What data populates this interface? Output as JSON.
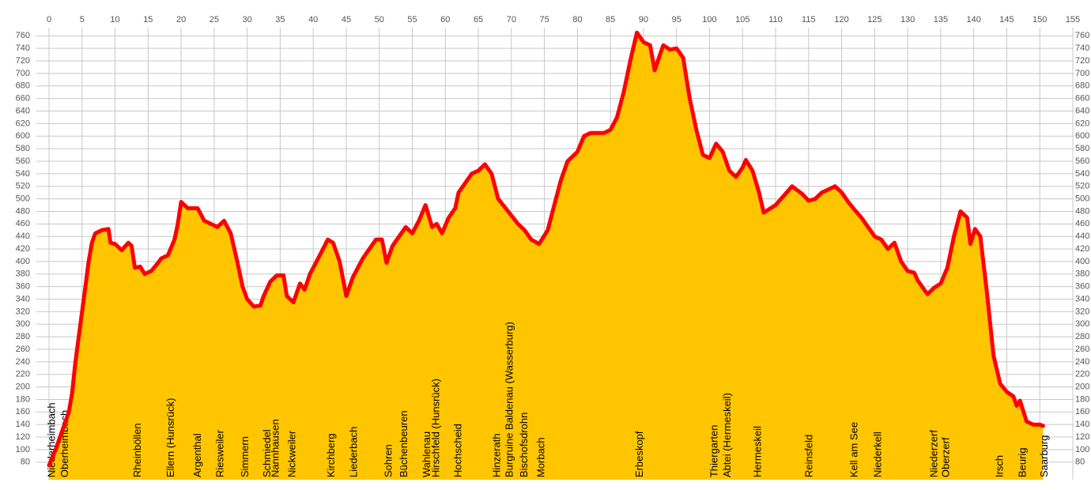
{
  "chart_data": {
    "type": "area",
    "x": [
      0,
      1,
      2,
      3,
      3.5,
      4,
      4.5,
      5,
      5.5,
      6,
      6.5,
      7,
      8,
      9,
      9.3,
      10,
      11,
      12,
      12.5,
      13,
      13.8,
      14.5,
      15.5,
      16.5,
      17,
      18,
      19,
      19.5,
      20,
      21,
      22.5,
      23.5,
      24.5,
      25.5,
      26.5,
      27.5,
      28.5,
      29.3,
      30,
      31,
      32,
      32.5,
      33.5,
      34.5,
      35.5,
      36,
      37,
      38,
      38.7,
      39.5,
      41,
      42.2,
      43,
      44,
      45,
      46,
      47.5,
      48.5,
      49.5,
      50.4,
      51.1,
      52,
      53,
      54,
      55,
      56,
      57,
      58,
      58.7,
      59.5,
      60.5,
      61.5,
      62,
      63,
      64,
      65,
      66,
      67,
      68,
      69.5,
      71,
      72,
      73,
      74.2,
      75.5,
      76.5,
      77.5,
      78.5,
      80,
      81,
      82,
      84,
      85,
      86,
      87,
      88,
      89,
      90,
      91,
      91.7,
      92.5,
      93,
      94,
      95,
      96,
      97,
      98,
      99,
      100,
      101,
      102,
      103,
      104,
      105,
      105.5,
      106.5,
      107.5,
      108.2,
      110,
      111.5,
      112.5,
      114,
      115,
      116,
      117,
      119,
      120,
      121,
      122,
      123,
      124,
      125,
      126,
      127,
      128,
      129,
      130,
      131,
      131.5,
      132.5,
      133,
      134,
      135,
      136,
      137,
      138,
      139,
      139.5,
      140.2,
      141,
      142,
      143,
      144,
      145,
      146,
      146.5,
      147,
      148,
      149,
      150,
      150.5
    ],
    "values": [
      75,
      100,
      130,
      160,
      190,
      240,
      280,
      320,
      360,
      400,
      430,
      445,
      450,
      452,
      430,
      428,
      418,
      430,
      425,
      390,
      392,
      380,
      385,
      398,
      405,
      410,
      435,
      460,
      495,
      485,
      485,
      465,
      460,
      455,
      465,
      445,
      400,
      360,
      340,
      328,
      330,
      345,
      368,
      378,
      378,
      345,
      335,
      365,
      355,
      380,
      410,
      435,
      430,
      400,
      345,
      375,
      405,
      420,
      435,
      435,
      398,
      425,
      440,
      455,
      445,
      465,
      490,
      455,
      460,
      445,
      470,
      485,
      510,
      525,
      540,
      545,
      555,
      540,
      500,
      480,
      460,
      450,
      435,
      428,
      450,
      490,
      530,
      560,
      575,
      600,
      605,
      605,
      610,
      630,
      670,
      720,
      765,
      750,
      745,
      705,
      730,
      745,
      738,
      740,
      725,
      660,
      610,
      570,
      565,
      588,
      575,
      545,
      535,
      550,
      562,
      545,
      510,
      478,
      490,
      508,
      520,
      508,
      497,
      500,
      510,
      520,
      510,
      495,
      482,
      470,
      455,
      440,
      435,
      420,
      430,
      400,
      385,
      382,
      370,
      355,
      348,
      358,
      365,
      390,
      440,
      480,
      470,
      428,
      452,
      440,
      350,
      250,
      205,
      192,
      185,
      170,
      178,
      145,
      140,
      140,
      138
    ],
    "color": "#ff0000",
    "fill": "#ffc600",
    "xlim": [
      0,
      155
    ],
    "xticks": [
      0,
      5,
      10,
      15,
      20,
      25,
      30,
      35,
      40,
      45,
      50,
      55,
      60,
      65,
      70,
      75,
      80,
      85,
      90,
      95,
      100,
      105,
      110,
      115,
      120,
      125,
      130,
      135,
      140,
      145,
      150,
      155
    ],
    "ylim": [
      52,
      773
    ],
    "yticks": [
      80,
      100,
      120,
      140,
      160,
      180,
      200,
      220,
      240,
      260,
      280,
      300,
      320,
      340,
      360,
      380,
      400,
      420,
      440,
      460,
      480,
      500,
      520,
      540,
      560,
      580,
      600,
      620,
      640,
      660,
      680,
      700,
      720,
      740,
      760
    ],
    "grid": true,
    "annotations": [
      {
        "text": "Niederheimbach",
        "x": 0
      },
      {
        "text": "Oberheimbach",
        "x": 2
      },
      {
        "text": "Rheinböllen",
        "x": 13
      },
      {
        "text": "Ellern (Hunsrück)",
        "x": 18
      },
      {
        "text": "Argenthal",
        "x": 22.1
      },
      {
        "text": "Riesweiler",
        "x": 25.5
      },
      {
        "text": "Simmern",
        "x": 29.3
      },
      {
        "text": "Schmiedel",
        "x": 32.6
      },
      {
        "text": "Nannhausen",
        "x": 33.9
      },
      {
        "text": "Nickweiler",
        "x": 36.4
      },
      {
        "text": "Kirchberg",
        "x": 42.3
      },
      {
        "text": "Liederbach",
        "x": 45.7
      },
      {
        "text": "Sohren",
        "x": 51
      },
      {
        "text": "Büchenbeuren",
        "x": 53.3
      },
      {
        "text": "Wahlenau",
        "x": 56.8
      },
      {
        "text": "Hirschfeld (Hunsrück)",
        "x": 58.2
      },
      {
        "text": "Hochscheid",
        "x": 61.5
      },
      {
        "text": "Hinzerath",
        "x": 67.4
      },
      {
        "text": "Burgruine Baldenau (Wasserburg)",
        "x": 69.3
      },
      {
        "text": "Bischofsdrohn",
        "x": 71.5
      },
      {
        "text": "Morbach",
        "x": 74.1
      },
      {
        "text": "Erbeskopf",
        "x": 89
      },
      {
        "text": "Thiergarten",
        "x": 100.3
      },
      {
        "text": "Abtei (Hermeskeil)",
        "x": 102.3
      },
      {
        "text": "Hermeskeil",
        "x": 106.9
      },
      {
        "text": "Reinsfeld",
        "x": 114.7
      },
      {
        "text": "Kell am See",
        "x": 121.5
      },
      {
        "text": "Niederkell",
        "x": 125.1
      },
      {
        "text": "Niederzerf",
        "x": 133.6
      },
      {
        "text": "Oberzerf",
        "x": 135.4
      },
      {
        "text": "Irsch",
        "x": 143.5
      },
      {
        "text": "Beurig",
        "x": 147
      },
      {
        "text": "Saarburg",
        "x": 150.3
      }
    ]
  }
}
